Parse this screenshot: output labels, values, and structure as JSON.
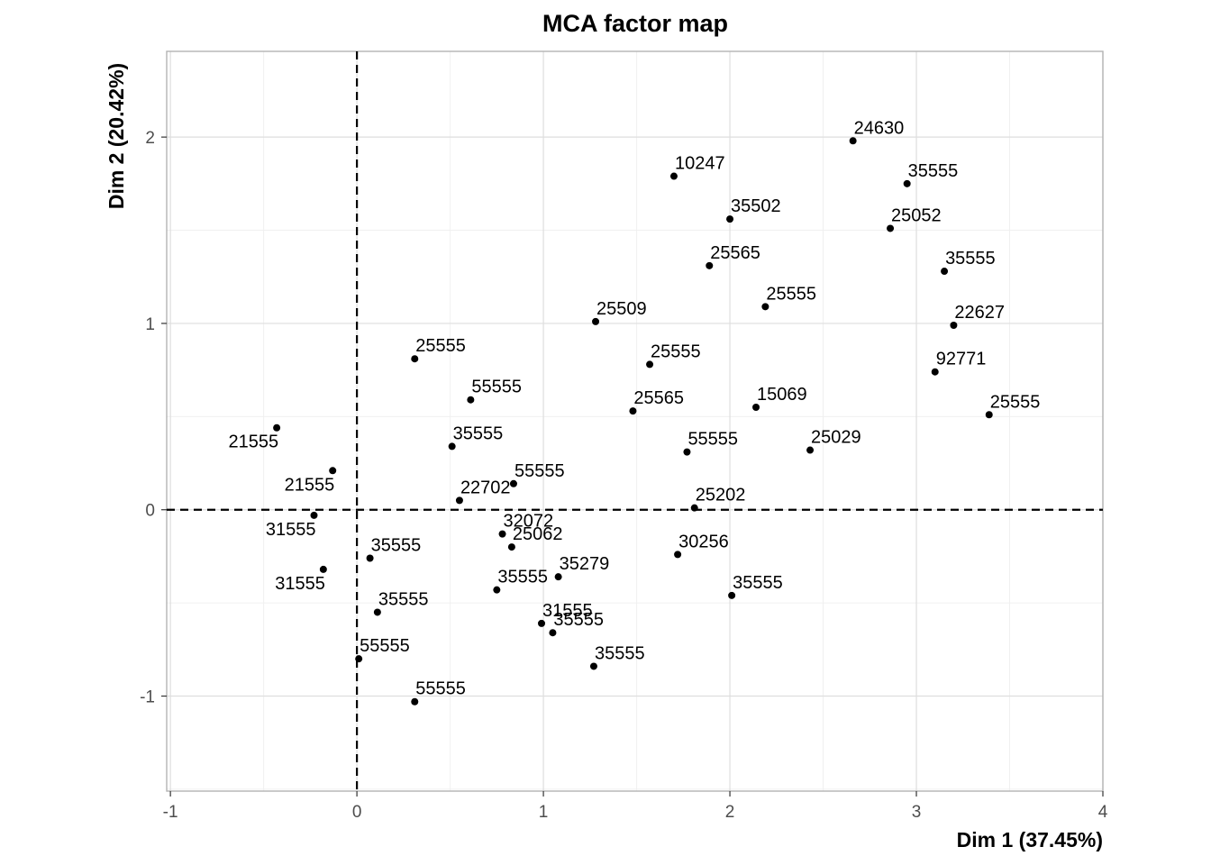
{
  "chart_data": {
    "type": "scatter",
    "title": "MCA factor map",
    "xlabel": "Dim 1 (37.45%)",
    "ylabel": "Dim 2 (20.42%)",
    "xlim": [
      -1.02,
      4.0
    ],
    "ylim": [
      -1.51,
      2.46
    ],
    "xticks": [
      -1,
      0,
      1,
      2,
      3,
      4
    ],
    "yticks": [
      -1,
      0,
      1,
      2
    ],
    "grid": true,
    "reference_lines": {
      "x": 0,
      "y": 0,
      "style": "dashed"
    },
    "points": [
      {
        "x": -0.43,
        "y": 0.44,
        "label": "21555"
      },
      {
        "x": -0.13,
        "y": 0.21,
        "label": "21555"
      },
      {
        "x": -0.23,
        "y": -0.03,
        "label": "31555"
      },
      {
        "x": -0.18,
        "y": -0.32,
        "label": "31555"
      },
      {
        "x": 0.31,
        "y": 0.81,
        "label": "25555"
      },
      {
        "x": 0.61,
        "y": 0.59,
        "label": "55555"
      },
      {
        "x": 0.51,
        "y": 0.34,
        "label": "35555"
      },
      {
        "x": 0.55,
        "y": 0.05,
        "label": "22702"
      },
      {
        "x": 0.84,
        "y": 0.14,
        "label": "55555"
      },
      {
        "x": 0.07,
        "y": -0.26,
        "label": "35555"
      },
      {
        "x": 0.11,
        "y": -0.55,
        "label": "35555"
      },
      {
        "x": 0.01,
        "y": -0.8,
        "label": "55555"
      },
      {
        "x": 0.31,
        "y": -1.03,
        "label": "55555"
      },
      {
        "x": 0.78,
        "y": -0.13,
        "label": "32072"
      },
      {
        "x": 0.83,
        "y": -0.2,
        "label": "25062"
      },
      {
        "x": 1.08,
        "y": -0.36,
        "label": "35279"
      },
      {
        "x": 0.75,
        "y": -0.43,
        "label": "35555"
      },
      {
        "x": 0.99,
        "y": -0.61,
        "label": "31555"
      },
      {
        "x": 1.05,
        "y": -0.66,
        "label": "35555"
      },
      {
        "x": 1.27,
        "y": -0.84,
        "label": "35555"
      },
      {
        "x": 1.28,
        "y": 1.01,
        "label": "25509"
      },
      {
        "x": 1.57,
        "y": 0.78,
        "label": "25555"
      },
      {
        "x": 1.48,
        "y": 0.53,
        "label": "25565"
      },
      {
        "x": 1.7,
        "y": 1.79,
        "label": "10247"
      },
      {
        "x": 2.0,
        "y": 1.56,
        "label": "35502"
      },
      {
        "x": 1.89,
        "y": 1.31,
        "label": "25565"
      },
      {
        "x": 2.19,
        "y": 1.09,
        "label": "25555"
      },
      {
        "x": 2.14,
        "y": 0.55,
        "label": "15069"
      },
      {
        "x": 1.77,
        "y": 0.31,
        "label": "55555"
      },
      {
        "x": 2.43,
        "y": 0.32,
        "label": "25029"
      },
      {
        "x": 1.81,
        "y": 0.01,
        "label": "25202"
      },
      {
        "x": 1.72,
        "y": -0.24,
        "label": "30256"
      },
      {
        "x": 2.01,
        "y": -0.46,
        "label": "35555"
      },
      {
        "x": 2.66,
        "y": 1.98,
        "label": "24630"
      },
      {
        "x": 2.95,
        "y": 1.75,
        "label": "35555"
      },
      {
        "x": 2.86,
        "y": 1.51,
        "label": "25052"
      },
      {
        "x": 3.15,
        "y": 1.28,
        "label": "35555"
      },
      {
        "x": 3.2,
        "y": 0.99,
        "label": "22627"
      },
      {
        "x": 3.1,
        "y": 0.74,
        "label": "92771"
      },
      {
        "x": 3.39,
        "y": 0.51,
        "label": "25555"
      }
    ]
  }
}
